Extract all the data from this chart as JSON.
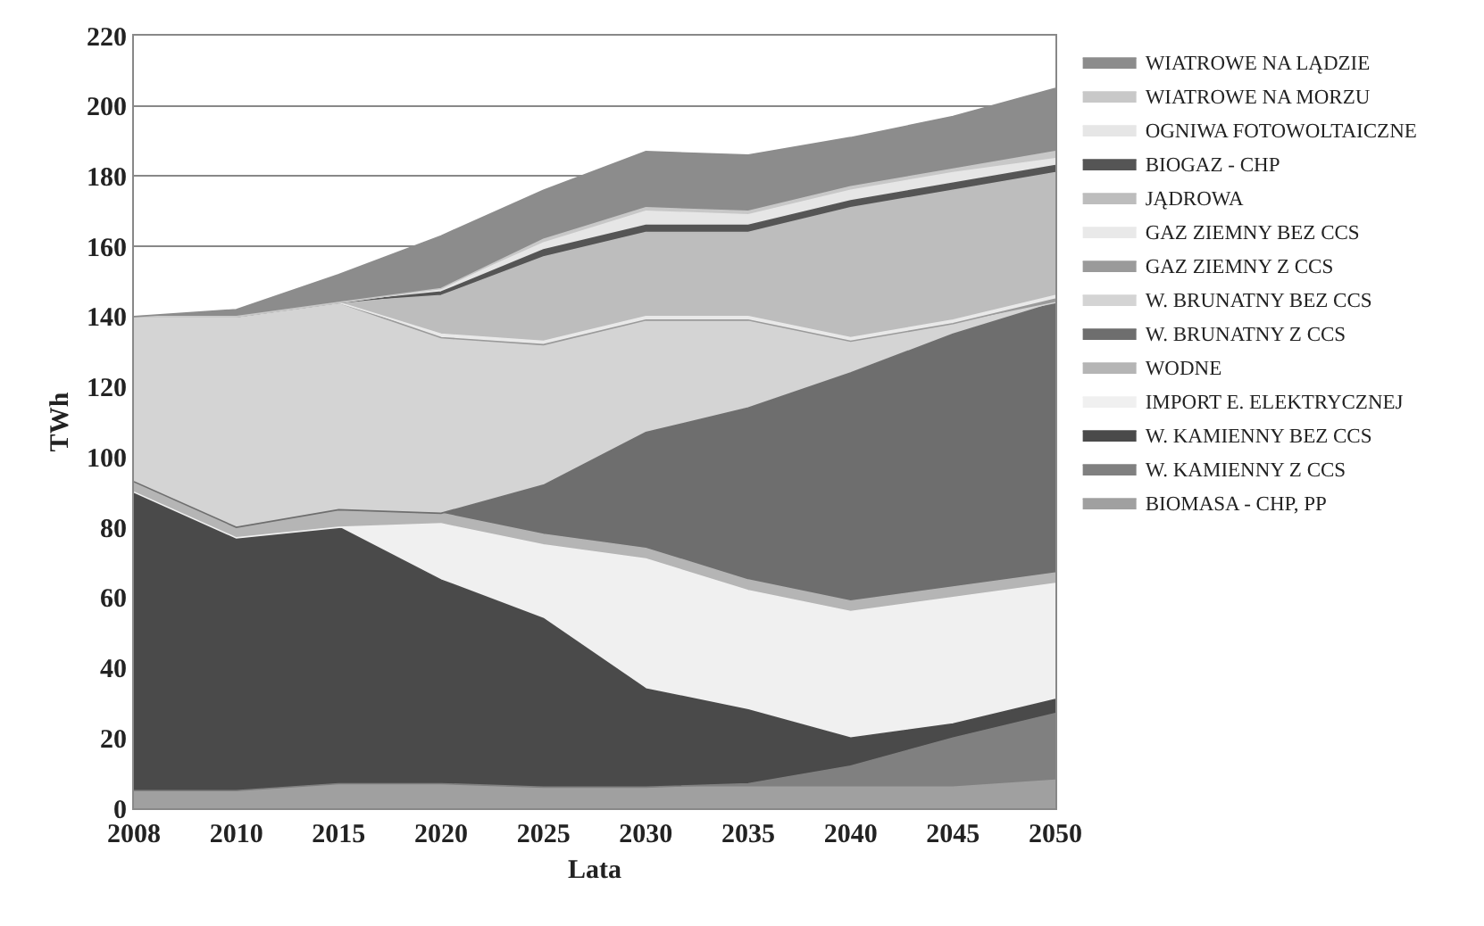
{
  "chart_data": {
    "type": "area",
    "stacked": true,
    "xlabel": "Lata",
    "ylabel": "TWh",
    "categories": [
      "2008",
      "2010",
      "2015",
      "2020",
      "2025",
      "2030",
      "2035",
      "2040",
      "2045",
      "2050"
    ],
    "ylim": [
      0,
      220
    ],
    "yticks": [
      0,
      20,
      40,
      60,
      80,
      100,
      120,
      140,
      160,
      180,
      200,
      220
    ],
    "grid": "y",
    "legend": "right",
    "series": [
      {
        "name": "BIOMASA - CHP, PP",
        "color": "#a0a0a0",
        "values": [
          5,
          5,
          7,
          7,
          6,
          6,
          6,
          6,
          6,
          8
        ]
      },
      {
        "name": "W. KAMIENNY Z CCS",
        "color": "#808080",
        "values": [
          0,
          0,
          0,
          0,
          0,
          0,
          1,
          6,
          14,
          19
        ]
      },
      {
        "name": "W. KAMIENNY BEZ CCS",
        "color": "#4a4a4a",
        "values": [
          85,
          72,
          73,
          58,
          48,
          28,
          21,
          8,
          4,
          4
        ]
      },
      {
        "name": "IMPORT E. ELEKTRYCZNEJ",
        "color": "#f0f0f0",
        "values": [
          0,
          0,
          0,
          16,
          21,
          37,
          34,
          36,
          36,
          33
        ]
      },
      {
        "name": "WODNE",
        "color": "#b5b5b5",
        "values": [
          3,
          3,
          5,
          3,
          3,
          3,
          3,
          3,
          3,
          3
        ]
      },
      {
        "name": "W. BRUNATNY Z CCS",
        "color": "#6e6e6e",
        "values": [
          0,
          0,
          0,
          0,
          14,
          33,
          49,
          65,
          72,
          77
        ]
      },
      {
        "name": "W. BRUNATNY BEZ CCS",
        "color": "#d4d4d4",
        "values": [
          47,
          60,
          59,
          50,
          40,
          32,
          25,
          9,
          3,
          0
        ]
      },
      {
        "name": "GAZ ZIEMNY Z CCS",
        "color": "#9a9a9a",
        "values": [
          0,
          0,
          0,
          0,
          0,
          0,
          0,
          0,
          0,
          1
        ]
      },
      {
        "name": "GAZ ZIEMNY BEZ CCS",
        "color": "#e9e9e9",
        "values": [
          0,
          0,
          0,
          1,
          1,
          1,
          1,
          1,
          1,
          1
        ]
      },
      {
        "name": "JĄDROWA",
        "color": "#bdbdbd",
        "values": [
          0,
          0,
          0,
          11,
          24,
          24,
          24,
          37,
          37,
          35
        ]
      },
      {
        "name": "BIOGAZ - CHP",
        "color": "#555555",
        "values": [
          0,
          0,
          0,
          1,
          2,
          2,
          2,
          2,
          2,
          2
        ]
      },
      {
        "name": "OGNIWA FOTOWOLTAICZNE",
        "color": "#e6e6e6",
        "values": [
          0,
          0,
          0,
          1,
          2,
          4,
          3,
          3,
          3,
          2
        ]
      },
      {
        "name": "WIATROWE NA MORZU",
        "color": "#c8c8c8",
        "values": [
          0,
          0,
          0,
          0,
          1,
          1,
          1,
          1,
          1,
          2
        ]
      },
      {
        "name": "WIATROWE NA LĄDZIE",
        "color": "#8c8c8c",
        "values": [
          0,
          2,
          8,
          15,
          14,
          16,
          16,
          14,
          15,
          18
        ]
      }
    ]
  }
}
